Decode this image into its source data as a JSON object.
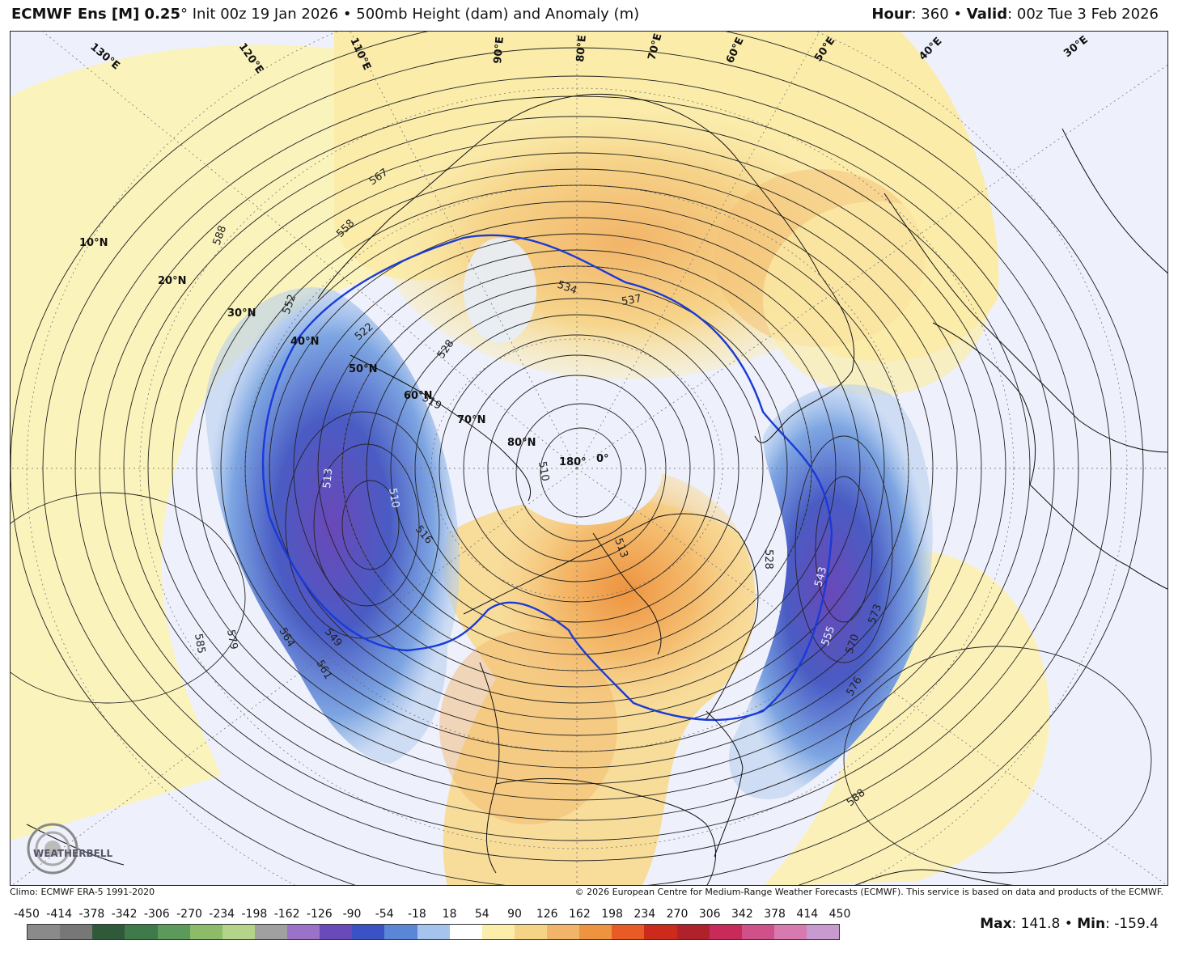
{
  "header": {
    "model": "ECMWF Ens [M] 0.25",
    "model_degree": "°",
    "init": "Init 00z 19 Jan 2026",
    "bullet": "•",
    "field": "500mb Height (dam) and Anomaly (m)",
    "hour_label": "Hour",
    "hour_value": ": 360",
    "valid_label": "Valid",
    "valid_value": ": 00z Tue 3 Feb 2026"
  },
  "footer": {
    "climo": "Climo: ECMWF ERA-5 1991-2020",
    "copyright": "© 2026 European Centre for Medium-Range Weather Forecasts (ECMWF). This service is based on data and products of the ECMWF."
  },
  "logo": {
    "text": "WEATHERBELL"
  },
  "stats": {
    "max_label": "Max",
    "max_value": ": 141.8",
    "min_label": "Min",
    "min_value": ": -159.4"
  },
  "colorbar": {
    "ticks": [
      "-450",
      "-414",
      "-378",
      "-342",
      "-306",
      "-270",
      "-234",
      "-198",
      "-162",
      "-126",
      "-90",
      "-54",
      "-18",
      "18",
      "54",
      "90",
      "126",
      "162",
      "198",
      "234",
      "270",
      "306",
      "342",
      "378",
      "414",
      "450"
    ],
    "colors": [
      "#8a8a8a",
      "#777777",
      "#2f5a3a",
      "#3f7a4a",
      "#5b9a5a",
      "#8cbc6a",
      "#b4d48a",
      "#a0a0a0",
      "#9a72c8",
      "#6a4ab8",
      "#3a52c4",
      "#5a86d8",
      "#a4c4ee",
      "#ffffff",
      "#fbeeaa",
      "#f6d486",
      "#f2b468",
      "#ee9440",
      "#e85a26",
      "#cc2a1a",
      "#b0222a",
      "#c82a5a",
      "#d0508a",
      "#d67ab0",
      "#c89ad0"
    ]
  },
  "map": {
    "contour_labels": [
      "588",
      "585",
      "579",
      "564",
      "561",
      "549",
      "513",
      "510",
      "516",
      "552",
      "528",
      "534",
      "537",
      "519",
      "522",
      "567",
      "558",
      "510",
      "513",
      "528",
      "543",
      "555",
      "570",
      "573",
      "576",
      "588"
    ],
    "latitude_labels": [
      "10°N",
      "20°N",
      "30°N",
      "40°N",
      "50°N",
      "60°N",
      "70°N",
      "80°N"
    ],
    "longitude_labels": [
      "130°E",
      "120°E",
      "110°E",
      "90°E",
      "80°E",
      "70°E",
      "60°E",
      "50°E",
      "40°E",
      "30°E",
      "180°",
      "0°"
    ]
  }
}
